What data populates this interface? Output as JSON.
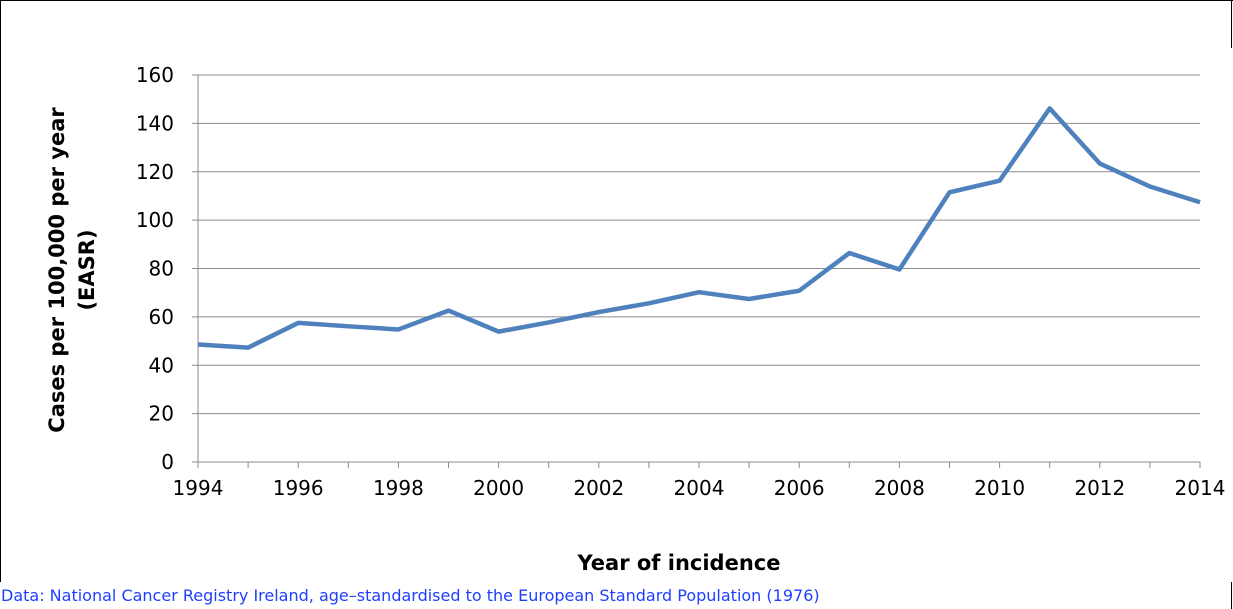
{
  "chart_data": {
    "type": "line",
    "title": "",
    "xlabel": "Year of incidence",
    "ylabel": [
      "Cases per 100,000 per year",
      "(EASR)"
    ],
    "xlim": [
      1994,
      2014
    ],
    "ylim": [
      0,
      160
    ],
    "x_ticks": [
      "1994",
      "1996",
      "1998",
      "2000",
      "2002",
      "2004",
      "2006",
      "2008",
      "2010",
      "2012",
      "2014"
    ],
    "y_ticks": [
      "0",
      "20",
      "40",
      "60",
      "80",
      "100",
      "120",
      "140",
      "160"
    ],
    "grid": true,
    "legend": "none",
    "series": [
      {
        "color": "#4F81BD",
        "x": [
          1994,
          1995,
          1996,
          1997,
          1998,
          1999,
          2000,
          2001,
          2002,
          2003,
          2004,
          2005,
          2006,
          2007,
          2008,
          2009,
          2010,
          2011,
          2012,
          2013,
          2014
        ],
        "values": [
          48.6,
          47.3,
          57.5,
          56.1,
          54.8,
          62.6,
          53.9,
          57.7,
          62.0,
          65.6,
          70.2,
          67.4,
          70.8,
          86.4,
          79.6,
          111.5,
          116.3,
          146.2,
          123.4,
          113.9,
          107.4
        ]
      }
    ]
  },
  "source_note": {
    "text": "Data: National Cancer Registry Ireland, age–standardised to the European Standard Population (1976)",
    "color": "#1F3FFF"
  }
}
